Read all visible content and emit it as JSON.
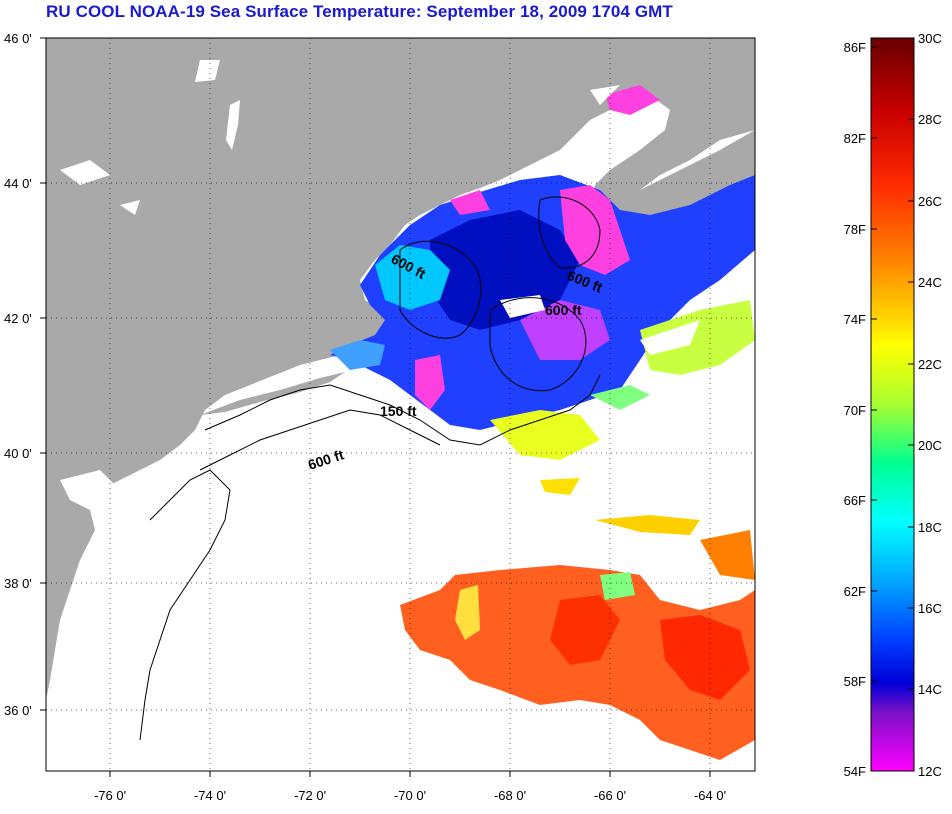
{
  "title": "RU COOL  NOAA-19  Sea Surface Temperature:  September 18, 2009 1704 GMT",
  "map": {
    "lat_labels": [
      "46 0'",
      "44 0'",
      "42 0'",
      "40 0'",
      "38 0'",
      "36 0'"
    ],
    "lon_labels": [
      "-76 0'",
      "-74 0'",
      "-72 0'",
      "-70 0'",
      "-68 0'",
      "-66 0'",
      "-64 0'"
    ],
    "contour_labels": [
      "600 ft",
      "600 ft",
      "600 ft",
      "150 ft",
      "600 ft"
    ],
    "land_color": "#a9a9a9",
    "cloud_color": "#ffffff"
  },
  "colorbar": {
    "fahrenheit_labels": [
      "86F",
      "82F",
      "78F",
      "74F",
      "70F",
      "66F",
      "62F",
      "58F",
      "54F"
    ],
    "celsius_labels": [
      "30C",
      "28C",
      "26C",
      "24C",
      "22C",
      "20C",
      "18C",
      "16C",
      "14C",
      "12C"
    ],
    "colors_top_to_bottom": [
      "#7a0000",
      "#d40000",
      "#ff3000",
      "#ff8000",
      "#ffd000",
      "#ffff00",
      "#a0ff30",
      "#00ffa0",
      "#00ffff",
      "#00a0ff",
      "#0040ff",
      "#0000d0",
      "#8000c0",
      "#ff00ff"
    ]
  }
}
